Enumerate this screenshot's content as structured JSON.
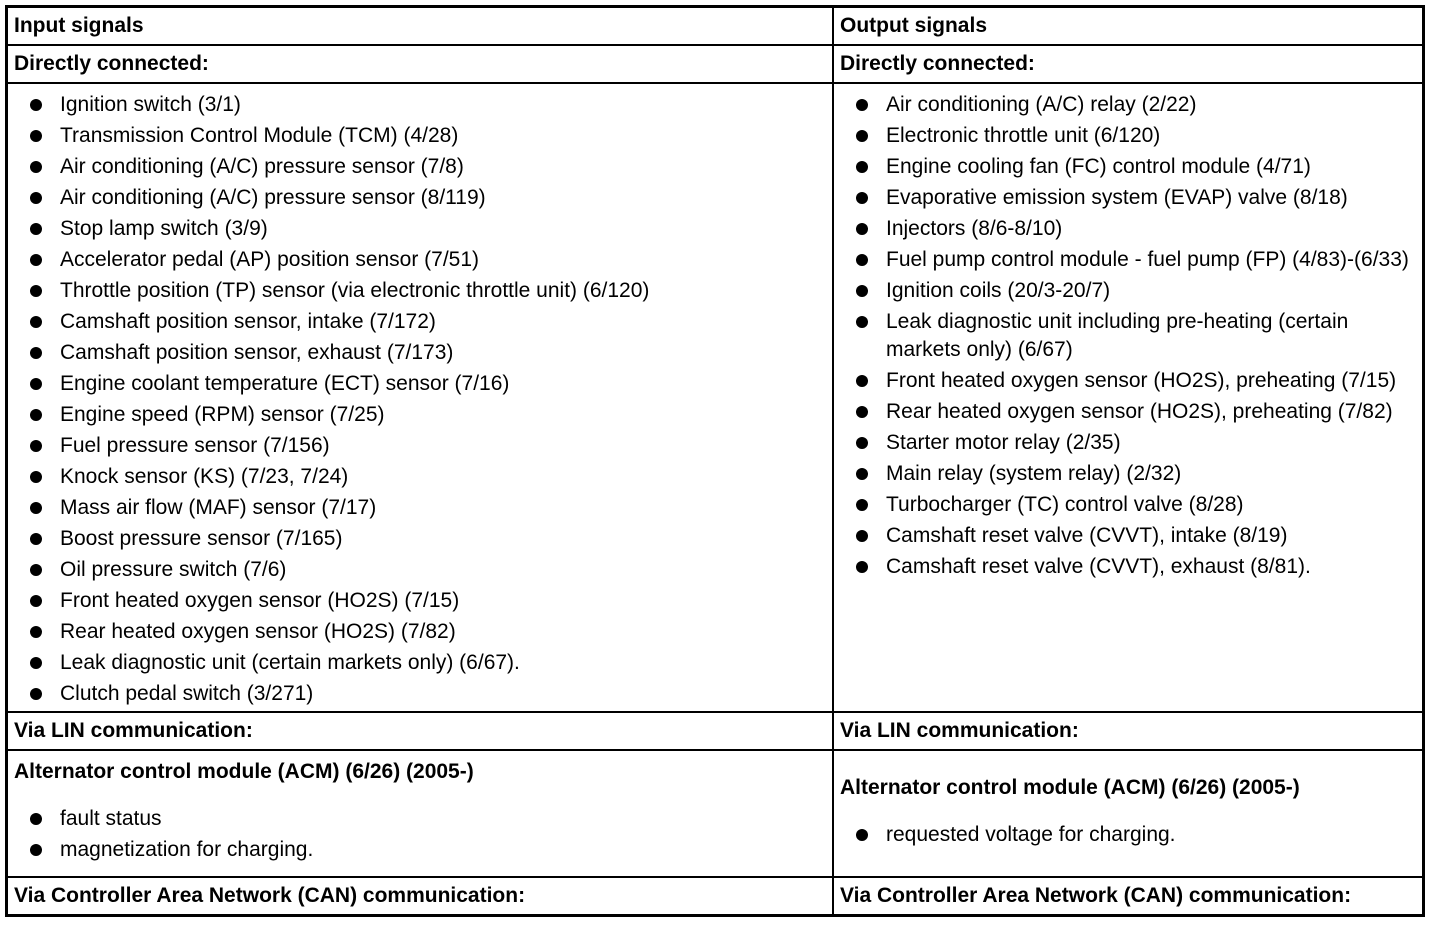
{
  "table": {
    "rows": [
      [
        "Input signals",
        "Output signals"
      ],
      [
        "Directly connected:",
        "Directly connected:"
      ],
      [
        {
          "items": [
            "Ignition switch (3/1)",
            "Transmission Control Module (TCM) (4/28)",
            "Air conditioning (A/C) pressure sensor (7/8)",
            "Air conditioning (A/C) pressure sensor (8/119)",
            "Stop lamp switch (3/9)",
            "Accelerator pedal (AP) position sensor (7/51)",
            "Throttle position (TP) sensor (via electronic throttle unit) (6/120)",
            "Camshaft position sensor, intake (7/172)",
            "Camshaft position sensor, exhaust (7/173)",
            "Engine coolant temperature (ECT) sensor (7/16)",
            "Engine speed (RPM) sensor (7/25)",
            "Fuel pressure sensor (7/156)",
            "Knock sensor (KS) (7/23, 7/24)",
            "Mass air flow (MAF) sensor (7/17)",
            "Boost pressure sensor (7/165)",
            "Oil pressure switch (7/6)",
            "Front heated oxygen sensor (HO2S) (7/15)",
            "Rear heated oxygen sensor (HO2S) (7/82)",
            "Leak diagnostic unit (certain markets only) (6/67).",
            "Clutch pedal switch (3/271)"
          ]
        },
        {
          "items": [
            "Air conditioning (A/C) relay (2/22)",
            "Electronic throttle unit (6/120)",
            "Engine cooling fan (FC) control module (4/71)",
            "Evaporative emission system (EVAP) valve (8/18)",
            "Injectors (8/6-8/10)",
            "Fuel pump control module - fuel pump (FP) (4/83)-(6/33)",
            "Ignition coils (20/3-20/7)",
            "Leak diagnostic unit including pre-heating (certain markets only) (6/67)",
            "Front heated oxygen sensor (HO2S), preheating (7/15)",
            "Rear heated oxygen sensor (HO2S), preheating (7/82)",
            "Starter motor relay (2/35)",
            "Main relay (system relay) (2/32)",
            "Turbocharger (TC) control valve (8/28)",
            "Camshaft reset valve (CVVT), intake (8/19)",
            "Camshaft reset valve (CVVT), exhaust (8/81)."
          ]
        }
      ],
      [
        "Via LIN communication:",
        "Via LIN communication:"
      ],
      [
        {
          "title": "Alternator control module (ACM) (6/26) (2005-)",
          "items": [
            "fault status",
            "magnetization for charging."
          ]
        },
        {
          "title": "Alternator control module (ACM) (6/26) (2005-)",
          "items": [
            "requested voltage for charging."
          ]
        }
      ],
      [
        "Via Controller Area Network (CAN) communication:",
        "Via Controller Area Network (CAN) communication:"
      ]
    ]
  }
}
